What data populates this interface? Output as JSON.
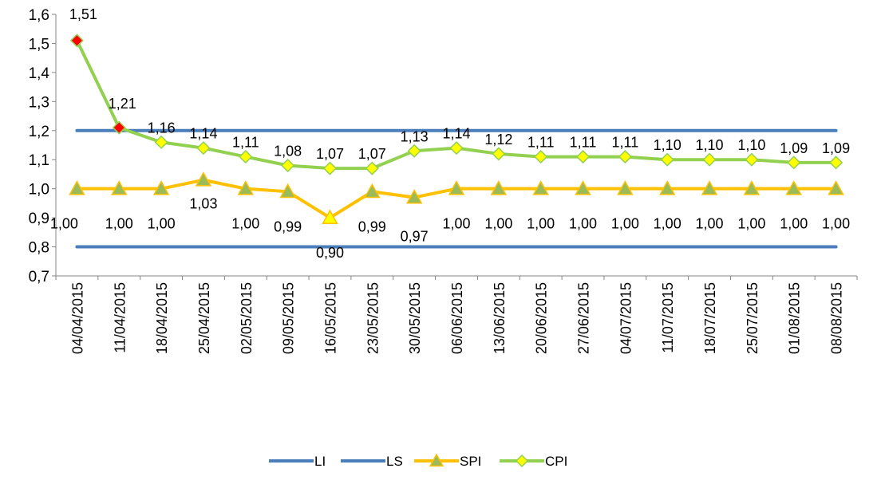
{
  "chart_data": {
    "type": "line",
    "categories": [
      "04/04/2015",
      "11/04/2015",
      "18/04/2015",
      "25/04/2015",
      "02/05/2015",
      "09/05/2015",
      "16/05/2015",
      "23/05/2015",
      "30/05/2015",
      "06/06/2015",
      "13/06/2015",
      "20/06/2015",
      "27/06/2015",
      "04/07/2015",
      "11/07/2015",
      "18/07/2015",
      "25/07/2015",
      "01/08/2015",
      "08/08/2015"
    ],
    "ylim": [
      0.7,
      1.6
    ],
    "yticks": [
      "0,7",
      "0,8",
      "0,9",
      "1,0",
      "1,1",
      "1,2",
      "1,3",
      "1,4",
      "1,5",
      "1,6"
    ],
    "grid": false,
    "legend_position": "bottom",
    "series": [
      {
        "name": "LI",
        "color": "#4a7ebb",
        "marker": "none",
        "values": [
          0.8,
          0.8,
          0.8,
          0.8,
          0.8,
          0.8,
          0.8,
          0.8,
          0.8,
          0.8,
          0.8,
          0.8,
          0.8,
          0.8,
          0.8,
          0.8,
          0.8,
          0.8,
          0.8
        ]
      },
      {
        "name": "LS",
        "color": "#4a7ebb",
        "marker": "none",
        "values": [
          1.2,
          1.2,
          1.2,
          1.2,
          1.2,
          1.2,
          1.2,
          1.2,
          1.2,
          1.2,
          1.2,
          1.2,
          1.2,
          1.2,
          1.2,
          1.2,
          1.2,
          1.2,
          1.2
        ]
      },
      {
        "name": "SPI",
        "color": "#ffc000",
        "marker": "triangle",
        "marker_fill": "#9bbb59",
        "values": [
          1.0,
          1.0,
          1.0,
          1.03,
          1.0,
          0.99,
          0.9,
          0.99,
          0.97,
          1.0,
          1.0,
          1.0,
          1.0,
          1.0,
          1.0,
          1.0,
          1.0,
          1.0,
          1.0
        ],
        "labels": [
          "1,00",
          "1,00",
          "1,00",
          "1,03",
          "1,00",
          "0,99",
          "0,90",
          "0,99",
          "0,97",
          "1,00",
          "1,00",
          "1,00",
          "1,00",
          "1,00",
          "1,00",
          "1,00",
          "1,00",
          "1,00",
          "1,00"
        ],
        "highlight_index": 6,
        "highlight_color": "#ffff00"
      },
      {
        "name": "CPI",
        "color": "#92d050",
        "marker": "diamond",
        "marker_fill": "#ffff00",
        "values": [
          1.51,
          1.21,
          1.16,
          1.14,
          1.11,
          1.08,
          1.07,
          1.07,
          1.13,
          1.14,
          1.12,
          1.11,
          1.11,
          1.11,
          1.1,
          1.1,
          1.1,
          1.09,
          1.09
        ],
        "labels": [
          "1,51",
          "1,21",
          "1,16",
          "1,14",
          "1,11",
          "1,08",
          "1,07",
          "1,07",
          "1,13",
          "1,14",
          "1,12",
          "1,11",
          "1,11",
          "1,11",
          "1,10",
          "1,10",
          "1,10",
          "1,09",
          "1,09"
        ],
        "highlight_indices": [
          0,
          1
        ],
        "highlight_color": "#ff0000"
      }
    ]
  }
}
